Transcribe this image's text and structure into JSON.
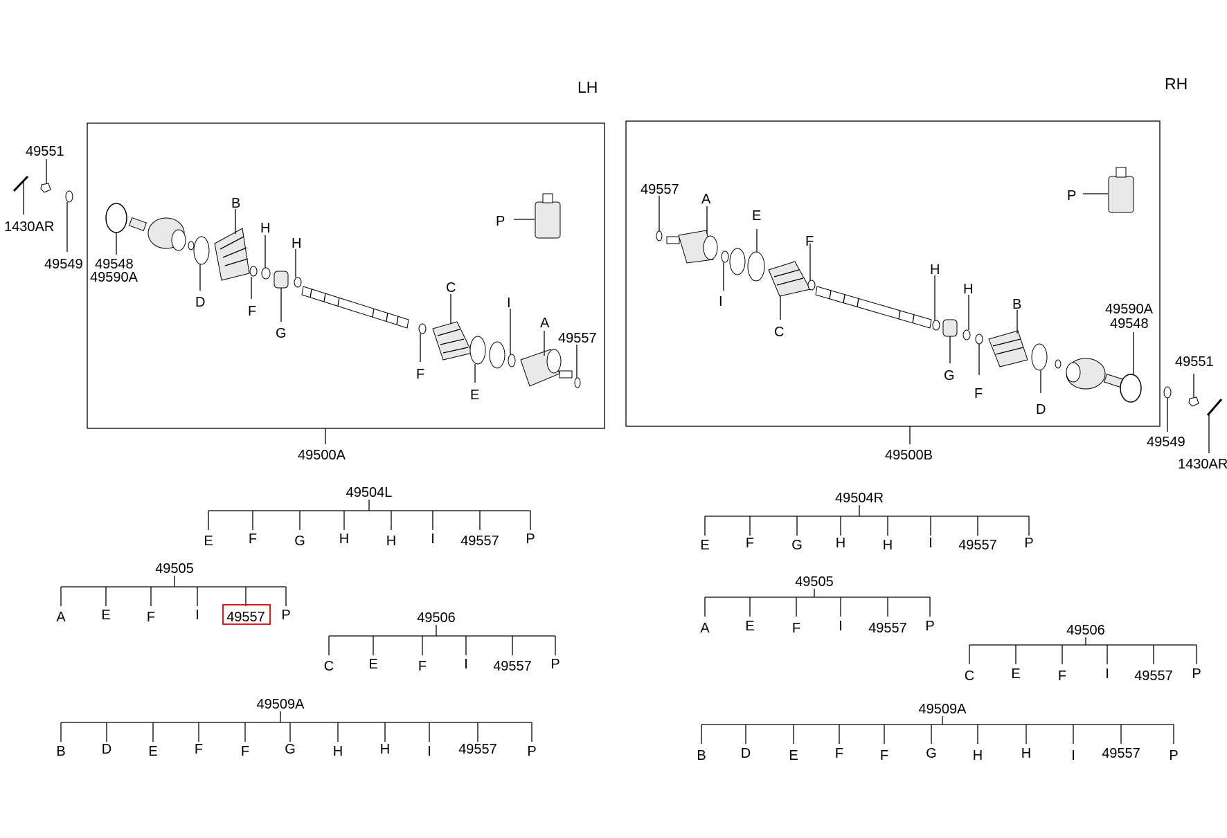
{
  "sides": {
    "lh": "LH",
    "rh": "RH"
  },
  "lh": {
    "assembly": "49500A",
    "part_49551": "49551",
    "part_1430ar": "1430AR",
    "part_49549": "49549",
    "part_49548": "49548",
    "part_49590a": "49590A",
    "part_49557": "49557",
    "letters": {
      "A": "A",
      "B": "B",
      "C": "C",
      "D": "D",
      "E": "E",
      "F1": "F",
      "F2": "F",
      "G": "G",
      "H1": "H",
      "H2": "H",
      "I": "I",
      "P": "P"
    }
  },
  "rh": {
    "assembly": "49500B",
    "part_49551": "49551",
    "part_1430ar": "1430AR",
    "part_49549": "49549",
    "part_49548": "49548",
    "part_49590a": "49590A",
    "part_49557": "49557",
    "letters": {
      "A": "A",
      "B": "B",
      "C": "C",
      "D": "D",
      "E": "E",
      "F1": "F",
      "F2": "F",
      "G": "G",
      "H1": "H",
      "H2": "H",
      "I": "I",
      "P": "P"
    }
  },
  "kits_lh": [
    {
      "code": "49504L",
      "items": [
        "E",
        "F",
        "G",
        "H",
        "H",
        "I",
        "49557",
        "P"
      ]
    },
    {
      "code": "49505",
      "items": [
        "A",
        "E",
        "F",
        "I",
        "49557",
        "P"
      ],
      "highlight_index": 4
    },
    {
      "code": "49506",
      "items": [
        "C",
        "E",
        "F",
        "I",
        "49557",
        "P"
      ]
    },
    {
      "code": "49509A",
      "items": [
        "B",
        "D",
        "E",
        "F",
        "F",
        "G",
        "H",
        "H",
        "I",
        "49557",
        "P"
      ]
    }
  ],
  "kits_rh": [
    {
      "code": "49504R",
      "items": [
        "E",
        "F",
        "G",
        "H",
        "H",
        "I",
        "49557",
        "P"
      ]
    },
    {
      "code": "49505",
      "items": [
        "A",
        "E",
        "F",
        "I",
        "49557",
        "P"
      ]
    },
    {
      "code": "49506",
      "items": [
        "C",
        "E",
        "F",
        "I",
        "49557",
        "P"
      ]
    },
    {
      "code": "49509A",
      "items": [
        "B",
        "D",
        "E",
        "F",
        "F",
        "G",
        "H",
        "H",
        "I",
        "49557",
        "P"
      ]
    }
  ]
}
